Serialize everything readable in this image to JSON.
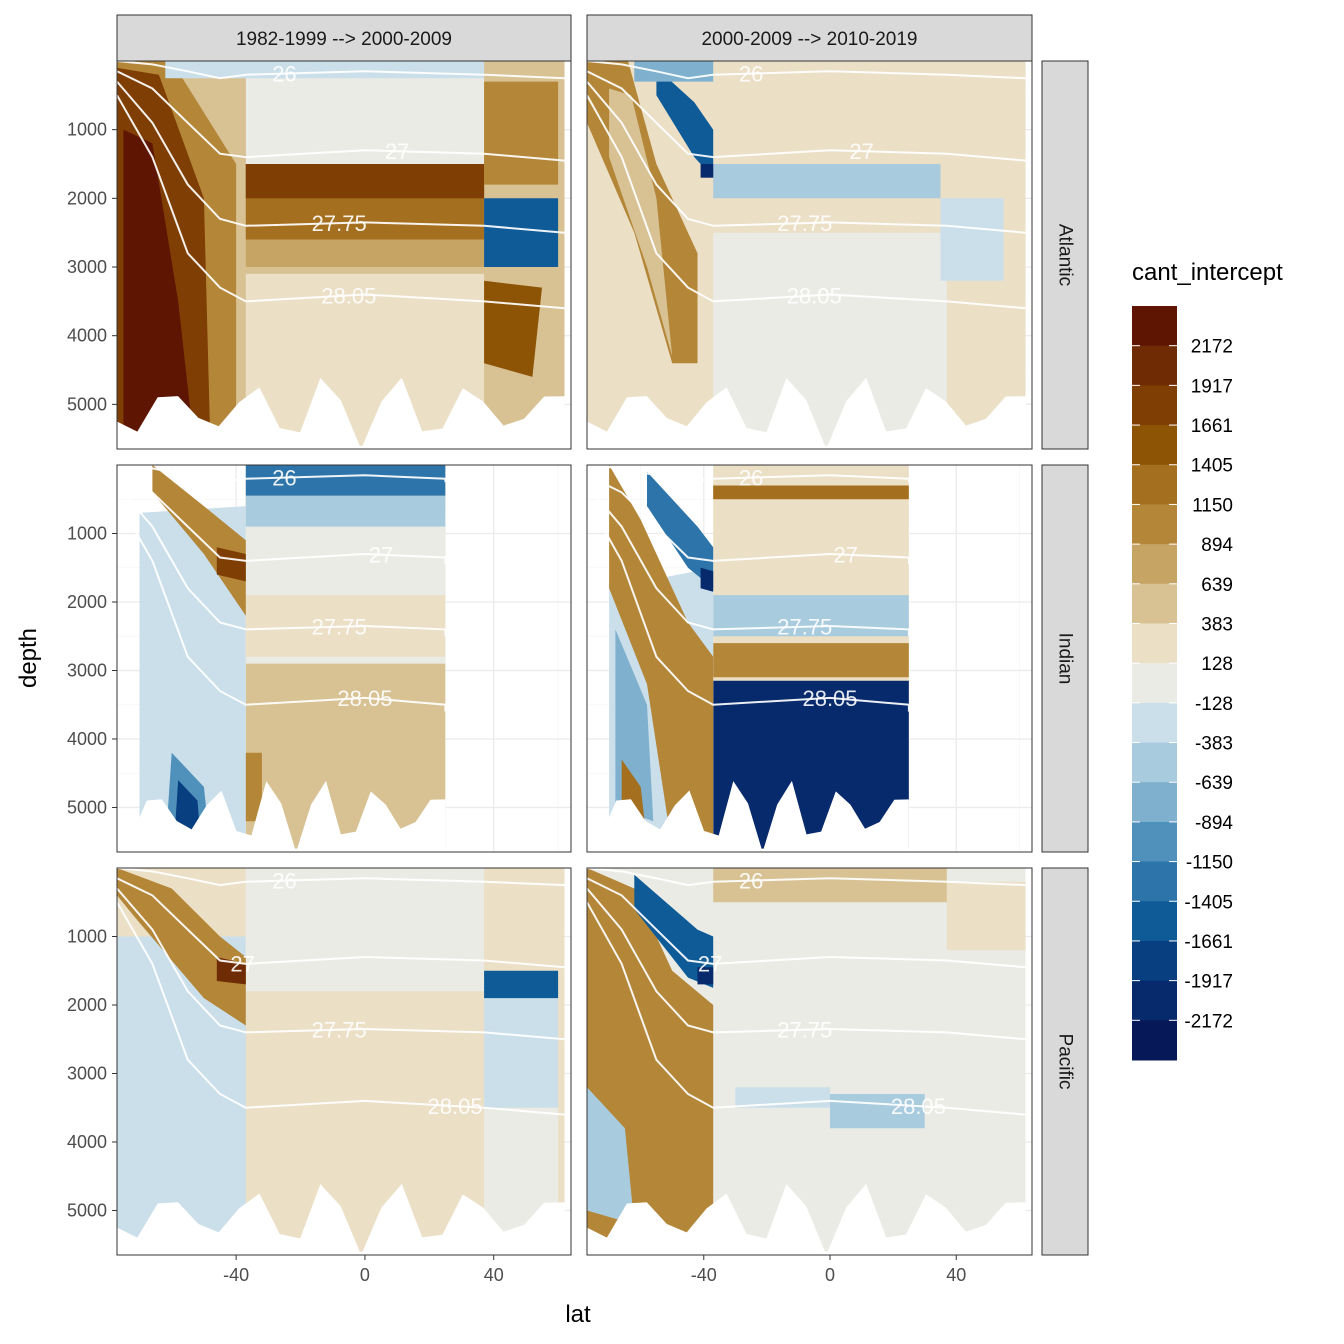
{
  "chart_data": {
    "type": "heatmap",
    "xlabel": "lat",
    "ylabel": "depth",
    "x_ticks": [
      -40,
      0,
      40
    ],
    "y_ticks": [
      1000,
      2000,
      3000,
      4000,
      5000
    ],
    "xlim": [
      -77,
      64
    ],
    "ylim": [
      5650,
      0
    ],
    "columns": [
      "1982-1999 --> 2000-2009",
      "2000-2009 --> 2010-2019"
    ],
    "rows": [
      "Atlantic",
      "Indian",
      "Pacific"
    ],
    "legend": {
      "title": "cant_intercept",
      "breaks": [
        2172,
        1917,
        1661,
        1405,
        1150,
        894,
        639,
        383,
        128,
        -128,
        -383,
        -639,
        -894,
        -1150,
        -1405,
        -1661,
        -1917,
        -2172
      ],
      "colors": [
        "#5e1502",
        "#6f2b03",
        "#7f3f04",
        "#8e5405",
        "#a46f1e",
        "#b48638",
        "#c6a463",
        "#d8c294",
        "#ebdfc6",
        "#ebebe6",
        "#cbdfea",
        "#a9cbde",
        "#7fb1cf",
        "#4f91bb",
        "#2c74aa",
        "#0e5b98",
        "#083f80",
        "#062a6b",
        "#061857"
      ]
    },
    "isopycnals": [
      "26",
      "27",
      "27.75",
      "28.05"
    ],
    "panels": [
      {
        "row": "Atlantic",
        "column": "1982-1999 --> 2000-2009",
        "lat_range": [
          -77,
          62
        ],
        "max_depth": 5600,
        "summary": "Strong positive (up to >2172) in Southern Ocean deep waters south of 45S; positive 1150-1661 band 1500-3000 m at mid latitudes; negative (-894 to -1405) at 40-55N near 2500-3000 m; positive 1661 below 3500 m at 40-50N"
      },
      {
        "row": "Atlantic",
        "column": "2000-2009 --> 2010-2019",
        "lat_range": [
          -77,
          62
        ],
        "max_depth": 5600,
        "summary": "Positive (1150-1405) band sloping down from 60S to 40S; negative (-1405 to -1661) at ~40S near 1500 m; weak negative (-383) band 1500-2000 m at mid latitudes; mostly weak positive elsewhere"
      },
      {
        "row": "Indian",
        "column": "1982-1999 --> 2000-2009",
        "lat_range": [
          -70,
          25
        ],
        "max_depth": 5600,
        "summary": "Weak negative (-128 to -383) south of 37S below 1000 m; negative (-894 to -1661) near 50-60S at 4500-5600 m; positive 1150-1661 at 40-45S near 1500 m; positive 383-639 north of 37S below 3000 m; negative (-1405) near 300 m at 30S-25N"
      },
      {
        "row": "Indian",
        "column": "2000-2009 --> 2010-2019",
        "lat_range": [
          -70,
          25
        ],
        "max_depth": 5600,
        "summary": "Positive (894-1150) diagonal band south of 37S; negative (-1917) at 40S near 1500 m; strong negative (-1405 to -1661) north of 37S below 3100 m; positive (1150) band near 3000 m"
      },
      {
        "row": "Pacific",
        "column": "1982-1999 --> 2000-2009",
        "lat_range": [
          -77,
          62
        ],
        "max_depth": 5600,
        "summary": "Weak negative (-128 to -383) south of 37S below 1500 m; positive 1405-1917 at 40-45S near 1500 m; positive 128-383 at mid latitudes; negative (-894 to -1150) at 40-55N near 1700 m"
      },
      {
        "row": "Pacific",
        "column": "2000-2009 --> 2010-2019",
        "lat_range": [
          -77,
          62
        ],
        "max_depth": 5600,
        "summary": "Positive (894-1150) south of 37S in deep layers; negative (-1661 to -1917) at 40S near 1500 m; weak negative (-383 to -639) 3000-3800 m at 0-30N; weak values elsewhere"
      }
    ]
  }
}
